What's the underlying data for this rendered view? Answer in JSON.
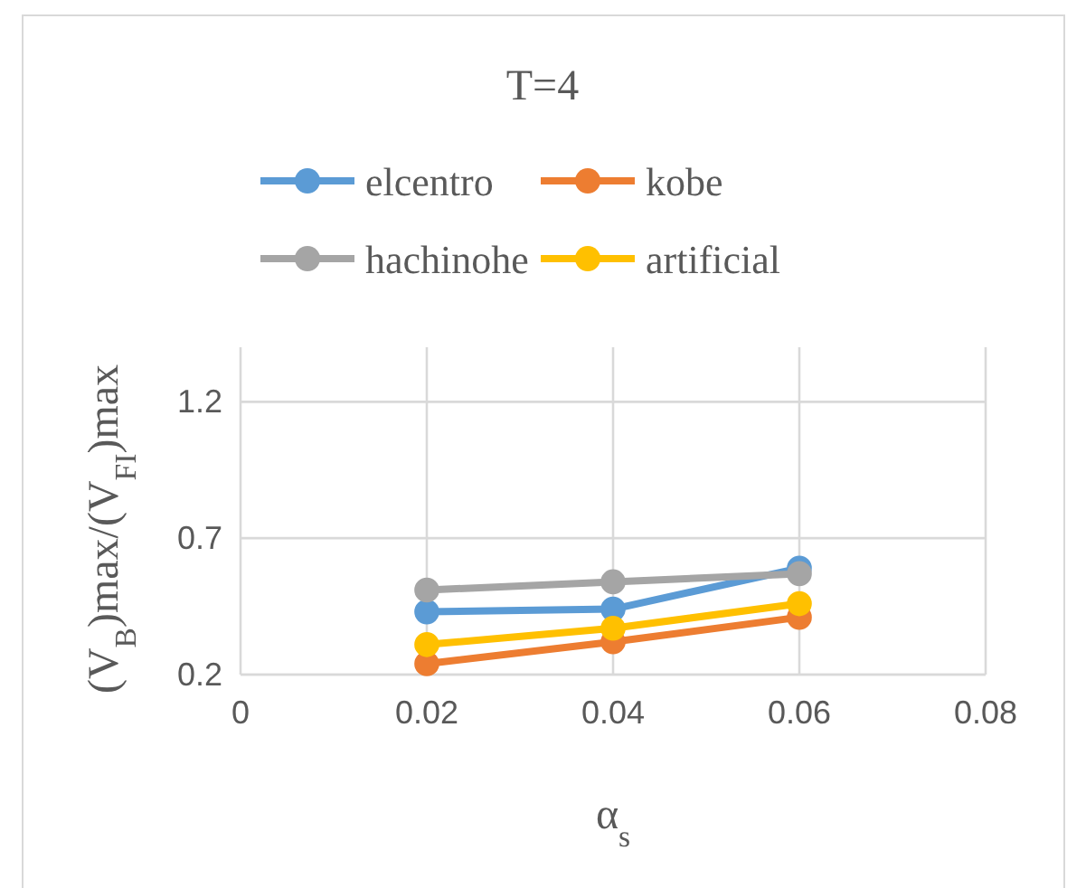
{
  "chart_data": {
    "type": "line",
    "title": "T=4",
    "xlabel": "α$_{s}$",
    "ylabel": "(V$_{B}$)max/(V$_{FI}$)max",
    "x": [
      0.02,
      0.04,
      0.06
    ],
    "xlim": [
      0,
      0.08
    ],
    "xticks": [
      0,
      0.02,
      0.04,
      0.06,
      0.08
    ],
    "ylim": [
      0.2,
      1.4
    ],
    "yticks": [
      0.2,
      0.7,
      1.2
    ],
    "grid": true,
    "legend": "top",
    "marker": "circle",
    "line_style": "solid",
    "series": [
      {
        "name": "elcentro",
        "color": "#5b9bd5",
        "values": [
          0.43,
          0.44,
          0.59
        ]
      },
      {
        "name": "kobe",
        "color": "#ed7d31",
        "values": [
          0.24,
          0.32,
          0.41
        ]
      },
      {
        "name": "hachinohe",
        "color": "#a5a5a5",
        "values": [
          0.51,
          0.54,
          0.57
        ]
      },
      {
        "name": "artificial",
        "color": "#ffc000",
        "values": [
          0.31,
          0.37,
          0.46
        ]
      }
    ]
  }
}
